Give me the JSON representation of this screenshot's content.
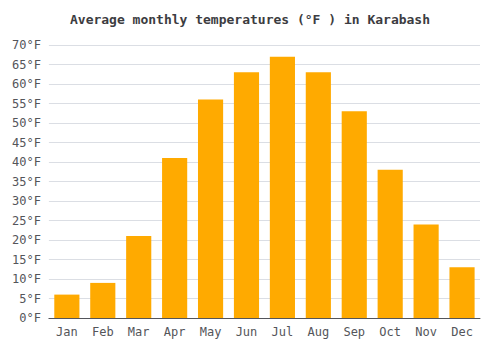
{
  "chart_data": {
    "type": "bar",
    "title": "Average monthly temperatures (°F ) in Karabash",
    "categories": [
      "Jan",
      "Feb",
      "Mar",
      "Apr",
      "May",
      "Jun",
      "Jul",
      "Aug",
      "Sep",
      "Oct",
      "Nov",
      "Dec"
    ],
    "values": [
      6,
      9,
      21,
      41,
      56,
      63,
      67,
      63,
      53,
      38,
      24,
      13
    ],
    "color": "#FFAA00",
    "ylim": [
      0,
      70
    ],
    "yticks": [
      {
        "value": 0,
        "label": "0°F"
      },
      {
        "value": 5,
        "label": "5°F"
      },
      {
        "value": 10,
        "label": "10°F"
      },
      {
        "value": 15,
        "label": "15°F"
      },
      {
        "value": 20,
        "label": "20°F"
      },
      {
        "value": 25,
        "label": "25°F"
      },
      {
        "value": 30,
        "label": "30°F"
      },
      {
        "value": 35,
        "label": "35°F"
      },
      {
        "value": 40,
        "label": "40°F"
      },
      {
        "value": 45,
        "label": "45°F"
      },
      {
        "value": 50,
        "label": "50°F"
      },
      {
        "value": 55,
        "label": "55°F"
      },
      {
        "value": 60,
        "label": "60°F"
      },
      {
        "value": 65,
        "label": "65°F"
      },
      {
        "value": 70,
        "label": "70°F"
      }
    ],
    "grid": true
  }
}
